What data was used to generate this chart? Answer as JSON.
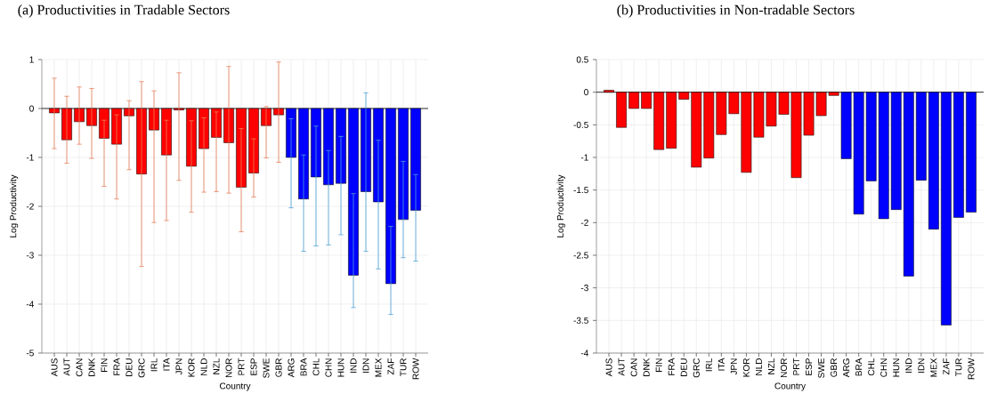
{
  "chart_data": [
    {
      "type": "bar",
      "title": "(a) Productivities in Tradable Sectors",
      "xlabel": "Country",
      "ylabel": "Log Productivity",
      "categories": [
        "AUS",
        "AUT",
        "CAN",
        "DNK",
        "FIN",
        "FRA",
        "DEU",
        "GRC",
        "IRL",
        "ITA",
        "JPN",
        "KOR",
        "NLD",
        "NZL",
        "NOR",
        "PRT",
        "ESP",
        "SWE",
        "GBR",
        "ARG",
        "BRA",
        "CHL",
        "CHN",
        "HUN",
        "IND",
        "IDN",
        "MEX",
        "ZAF",
        "TUR",
        "ROW"
      ],
      "values": [
        -0.09,
        -0.64,
        -0.27,
        -0.35,
        -0.61,
        -0.73,
        -0.15,
        -1.34,
        -0.44,
        -0.95,
        -0.03,
        -1.18,
        -0.82,
        -0.59,
        -0.7,
        -1.61,
        -1.32,
        -0.35,
        -0.13,
        -1.0,
        -1.85,
        -1.4,
        -1.56,
        -1.53,
        -3.41,
        -1.7,
        -1.91,
        -3.58,
        -2.27,
        -2.08
      ],
      "colors": [
        "#ff0000",
        "#ff0000",
        "#ff0000",
        "#ff0000",
        "#ff0000",
        "#ff0000",
        "#ff0000",
        "#ff0000",
        "#ff0000",
        "#ff0000",
        "#ff0000",
        "#ff0000",
        "#ff0000",
        "#ff0000",
        "#ff0000",
        "#ff0000",
        "#ff0000",
        "#ff0000",
        "#ff0000",
        "#0000ff",
        "#0000ff",
        "#0000ff",
        "#0000ff",
        "#0000ff",
        "#0000ff",
        "#0000ff",
        "#0000ff",
        "#0000ff",
        "#0000ff",
        "#0000ff"
      ],
      "errors": [
        [
          -0.82,
          0.62
        ],
        [
          -1.12,
          0.25
        ],
        [
          -0.73,
          0.44
        ],
        [
          -1.02,
          0.41
        ],
        [
          -1.59,
          -0.24
        ],
        [
          -1.85,
          -0.13
        ],
        [
          -1.25,
          0.16
        ],
        [
          -3.23,
          0.55
        ],
        [
          -2.33,
          0.36
        ],
        [
          -2.29,
          -0.24
        ],
        [
          -1.47,
          0.73
        ],
        [
          -2.12,
          -0.25
        ],
        [
          -1.71,
          -0.19
        ],
        [
          -1.7,
          -0.07
        ],
        [
          -1.73,
          0.86
        ],
        [
          -2.52,
          -0.41
        ],
        [
          -1.81,
          -0.62
        ],
        [
          -1.01,
          0.04
        ],
        [
          -1.1,
          0.95
        ],
        [
          -2.03,
          -0.21
        ],
        [
          -2.92,
          -0.95
        ],
        [
          -2.81,
          -0.36
        ],
        [
          -2.79,
          -0.86
        ],
        [
          -2.58,
          -0.57
        ],
        [
          -4.07,
          -1.74
        ],
        [
          -2.92,
          0.32
        ],
        [
          -3.28,
          -0.65
        ],
        [
          -4.21,
          -2.41
        ],
        [
          -3.05,
          -1.08
        ],
        [
          -3.12,
          -1.35
        ]
      ],
      "ylim": [
        -5,
        1
      ],
      "yticks": [
        -5,
        -4,
        -3,
        -2,
        -1,
        0,
        1
      ],
      "grid": true
    },
    {
      "type": "bar",
      "title": "(b) Productivities in Non-tradable Sectors",
      "xlabel": "Country",
      "ylabel": "Log Productivity",
      "categories": [
        "AUS",
        "AUT",
        "CAN",
        "DNK",
        "FIN",
        "FRA",
        "DEU",
        "GRC",
        "IRL",
        "ITA",
        "JPN",
        "KOR",
        "NLD",
        "NZL",
        "NOR",
        "PRT",
        "ESP",
        "SWE",
        "GBR",
        "ARG",
        "BRA",
        "CHL",
        "CHN",
        "HUN",
        "IND",
        "IDN",
        "MEX",
        "ZAF",
        "TUR",
        "ROW"
      ],
      "values": [
        0.03,
        -0.54,
        -0.25,
        -0.25,
        -0.88,
        -0.86,
        -0.11,
        -1.15,
        -1.01,
        -0.65,
        -0.33,
        -1.23,
        -0.69,
        -0.52,
        -0.34,
        -1.31,
        -0.66,
        -0.36,
        -0.05,
        -1.02,
        -1.87,
        -1.36,
        -1.94,
        -1.8,
        -2.82,
        -1.35,
        -2.1,
        -3.57,
        -1.92,
        -1.84
      ],
      "colors": [
        "#ff0000",
        "#ff0000",
        "#ff0000",
        "#ff0000",
        "#ff0000",
        "#ff0000",
        "#ff0000",
        "#ff0000",
        "#ff0000",
        "#ff0000",
        "#ff0000",
        "#ff0000",
        "#ff0000",
        "#ff0000",
        "#ff0000",
        "#ff0000",
        "#ff0000",
        "#ff0000",
        "#ff0000",
        "#0000ff",
        "#0000ff",
        "#0000ff",
        "#0000ff",
        "#0000ff",
        "#0000ff",
        "#0000ff",
        "#0000ff",
        "#0000ff",
        "#0000ff",
        "#0000ff"
      ],
      "ylim": [
        -4,
        0.5
      ],
      "yticks": [
        -4,
        -3.5,
        -3,
        -2.5,
        -2,
        -1.5,
        -1,
        -0.5,
        0,
        0.5
      ],
      "grid": true
    }
  ]
}
